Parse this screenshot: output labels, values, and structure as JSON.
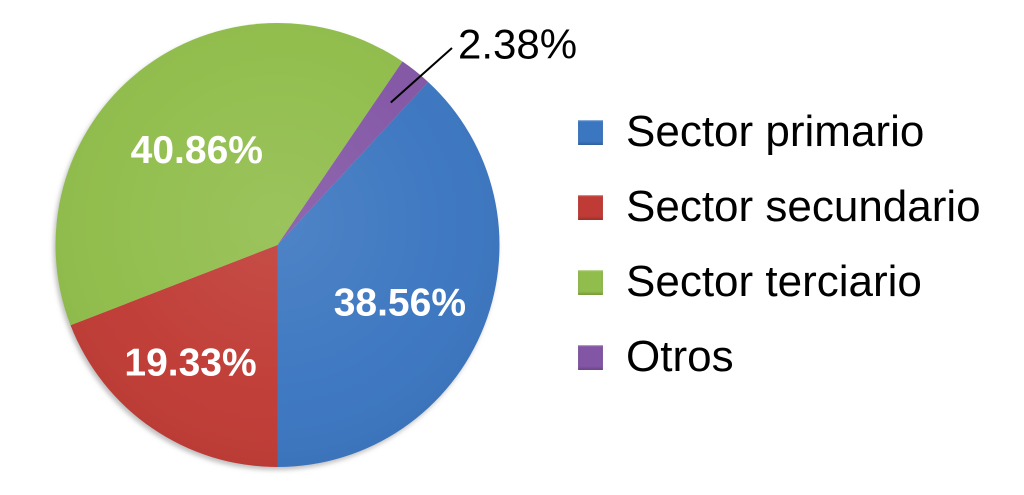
{
  "chart_data": {
    "type": "pie",
    "title": "",
    "categories": [
      "Sector primario",
      "Sector secundario",
      "Sector terciario",
      "Otros"
    ],
    "values": [
      38.56,
      19.33,
      40.86,
      2.38
    ],
    "data_labels": [
      "38.56%",
      "19.33%",
      "40.86%",
      "2.38%"
    ],
    "colors": [
      "#3B76C0",
      "#C03B35",
      "#90BD4B",
      "#8356A5"
    ],
    "legend_position": "right",
    "legend_labels": [
      "Sector primario",
      "Sector secundario",
      "Sector terciario",
      "Otros"
    ],
    "background_color": "#FFFFFF",
    "inner_label_color": "#FFFFFF",
    "callout_label_color": "#000000",
    "callout_line_color": "#000000"
  }
}
